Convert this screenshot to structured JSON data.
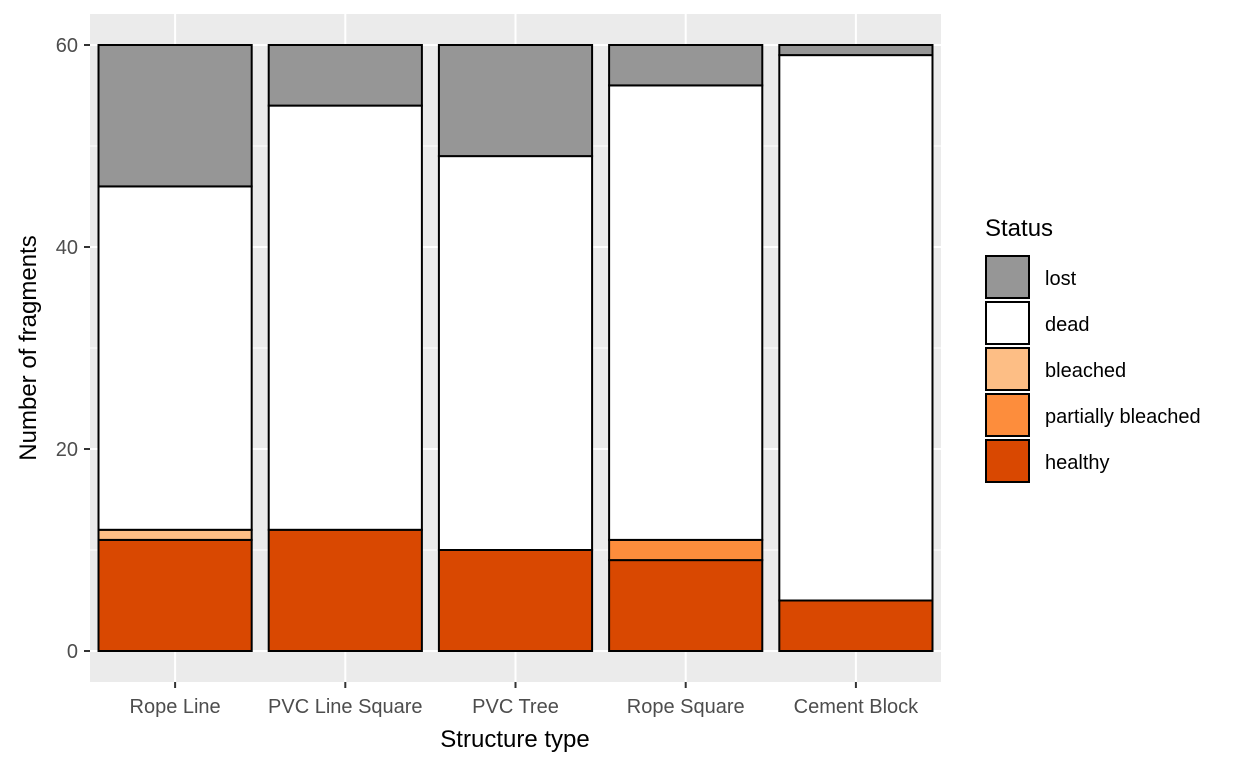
{
  "chart_data": {
    "type": "bar",
    "stacked": true,
    "xlabel": "Structure type",
    "ylabel": "Number of fragments",
    "ylim": [
      0,
      63
    ],
    "yticks": [
      0,
      20,
      40,
      60
    ],
    "categories": [
      "Rope Line",
      "PVC Line Square",
      "PVC Tree",
      "Rope Square",
      "Cement Block"
    ],
    "legend_title": "Status",
    "legend_position": "right",
    "grid": true,
    "series": [
      {
        "name": "healthy",
        "color": "#D94801",
        "values": [
          11,
          12,
          10,
          9,
          5
        ]
      },
      {
        "name": "partially bleached",
        "color": "#FD8D3C",
        "values": [
          0,
          0,
          0,
          2,
          0
        ]
      },
      {
        "name": "bleached",
        "color": "#FDBE85",
        "values": [
          1,
          0,
          0,
          0,
          0
        ]
      },
      {
        "name": "dead",
        "color": "#FFFFFF",
        "values": [
          34,
          42,
          39,
          45,
          54
        ]
      },
      {
        "name": "lost",
        "color": "#969696",
        "values": [
          14,
          6,
          11,
          4,
          1
        ]
      }
    ],
    "legend_order": [
      "lost",
      "dead",
      "bleached",
      "partially bleached",
      "healthy"
    ]
  }
}
